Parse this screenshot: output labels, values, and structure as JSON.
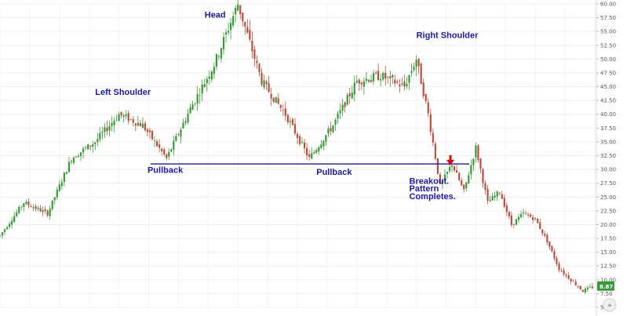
{
  "chart_data": {
    "type": "candlestick",
    "title": "",
    "xlabel": "",
    "ylabel": "",
    "ylim": [
      5,
      60
    ],
    "grid": true,
    "y_ticks": [
      "5.00",
      "7.50",
      "10.00",
      "12.50",
      "15.00",
      "17.50",
      "20.00",
      "22.50",
      "25.00",
      "27.50",
      "30.00",
      "32.50",
      "35.00",
      "37.50",
      "40.00",
      "42.50",
      "45.00",
      "47.50",
      "50.00",
      "52.50",
      "55.00",
      "57.50",
      "60.00"
    ],
    "last_price_label": "8.87",
    "last_price": 8.87,
    "neckline_value": 31.0,
    "annotations": [
      {
        "text": "Left Shoulder",
        "x": 40,
        "y": 43.5
      },
      {
        "text": "Head",
        "x": 86,
        "y": 57.5
      },
      {
        "text": "Right Shoulder",
        "x": 175,
        "y": 53.8
      },
      {
        "text": "Pullback",
        "x": 62,
        "y": 29.4
      },
      {
        "text": "Pullback",
        "x": 133,
        "y": 29.0
      },
      {
        "text": "Breakout.",
        "x": 172,
        "y": 27.4
      },
      {
        "text": "Pattern",
        "x": 172,
        "y": 26.0
      },
      {
        "text": "Completes.",
        "x": 172,
        "y": 24.6
      }
    ],
    "series": [
      {
        "x": [
          0,
          10,
          20,
          30,
          40,
          50,
          60,
          70,
          80,
          90,
          100,
          110,
          120,
          125,
          130,
          140,
          150,
          160,
          170,
          175,
          180,
          185,
          190,
          195,
          200,
          205,
          210,
          215,
          220,
          225,
          230,
          235,
          240,
          245,
          250
        ],
        "close": [
          18,
          24,
          22,
          32,
          35,
          40,
          38,
          32,
          41,
          49,
          60,
          46,
          40,
          36,
          32,
          38,
          46,
          47,
          45,
          50,
          40,
          27,
          31,
          26,
          34,
          24,
          26,
          20,
          22,
          21,
          17,
          12,
          10,
          8,
          8.87
        ]
      }
    ]
  },
  "ui": {
    "scroll_button_label": "»",
    "arrow_color": "#e00000",
    "neckline_color": "#1a1aa6",
    "annotation_color": "#1a1aa6"
  }
}
